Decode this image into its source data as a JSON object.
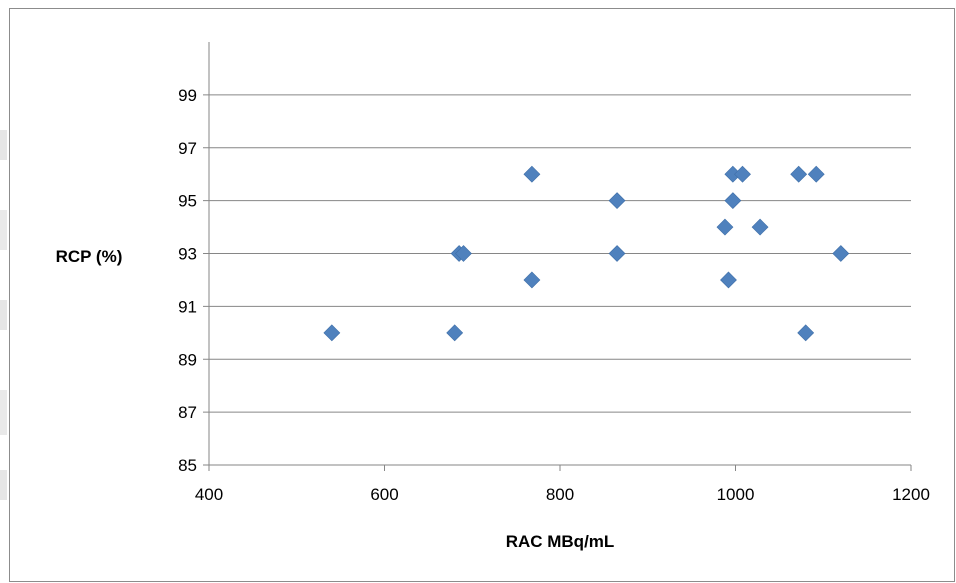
{
  "chart_data": {
    "type": "scatter",
    "title": "",
    "xlabel": "RAC MBq/mL",
    "ylabel": "RCP (%)",
    "xlim": [
      400,
      1200
    ],
    "ylim": [
      85,
      101
    ],
    "x_ticks": [
      400,
      600,
      800,
      1000,
      1200
    ],
    "y_ticks": [
      85,
      87,
      89,
      91,
      93,
      95,
      97,
      99
    ],
    "grid": "horizontal",
    "legend": "none",
    "marker": "diamond",
    "marker_color": "#4F81BD",
    "series": [
      {
        "points": [
          {
            "x": 540,
            "y": 90
          },
          {
            "x": 680,
            "y": 90
          },
          {
            "x": 685,
            "y": 93
          },
          {
            "x": 690,
            "y": 93
          },
          {
            "x": 768,
            "y": 96
          },
          {
            "x": 768,
            "y": 92
          },
          {
            "x": 865,
            "y": 95
          },
          {
            "x": 865,
            "y": 93
          },
          {
            "x": 988,
            "y": 94
          },
          {
            "x": 992,
            "y": 92
          },
          {
            "x": 997,
            "y": 96
          },
          {
            "x": 997,
            "y": 95
          },
          {
            "x": 1008,
            "y": 96
          },
          {
            "x": 1028,
            "y": 94
          },
          {
            "x": 1072,
            "y": 96
          },
          {
            "x": 1080,
            "y": 90
          },
          {
            "x": 1092,
            "y": 96
          },
          {
            "x": 1120,
            "y": 93
          }
        ]
      }
    ]
  }
}
